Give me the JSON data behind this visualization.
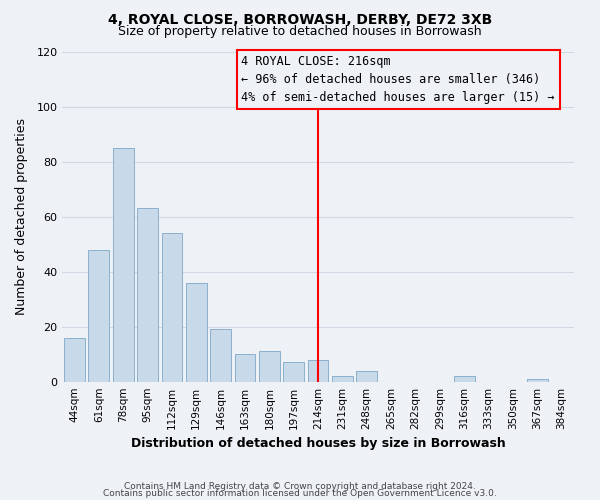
{
  "title": "4, ROYAL CLOSE, BORROWASH, DERBY, DE72 3XB",
  "subtitle": "Size of property relative to detached houses in Borrowash",
  "xlabel": "Distribution of detached houses by size in Borrowash",
  "ylabel": "Number of detached properties",
  "bar_labels": [
    "44sqm",
    "61sqm",
    "78sqm",
    "95sqm",
    "112sqm",
    "129sqm",
    "146sqm",
    "163sqm",
    "180sqm",
    "197sqm",
    "214sqm",
    "231sqm",
    "248sqm",
    "265sqm",
    "282sqm",
    "299sqm",
    "316sqm",
    "333sqm",
    "350sqm",
    "367sqm",
    "384sqm"
  ],
  "bar_heights": [
    16,
    48,
    85,
    63,
    54,
    36,
    19,
    10,
    11,
    7,
    8,
    2,
    4,
    0,
    0,
    0,
    2,
    0,
    0,
    1,
    0
  ],
  "bar_color": "#c8daea",
  "bar_edge_color": "#8ab0cc",
  "red_line_index": 10,
  "ylim": [
    0,
    120
  ],
  "yticks": [
    0,
    20,
    40,
    60,
    80,
    100,
    120
  ],
  "footer_line1": "Contains HM Land Registry data © Crown copyright and database right 2024.",
  "footer_line2": "Contains public sector information licensed under the Open Government Licence v3.0.",
  "legend_title": "4 ROYAL CLOSE: 216sqm",
  "legend_line1": "← 96% of detached houses are smaller (346)",
  "legend_line2": "4% of semi-detached houses are larger (15) →",
  "background_color": "#eef2f7",
  "grid_color": "#d0d8e4"
}
